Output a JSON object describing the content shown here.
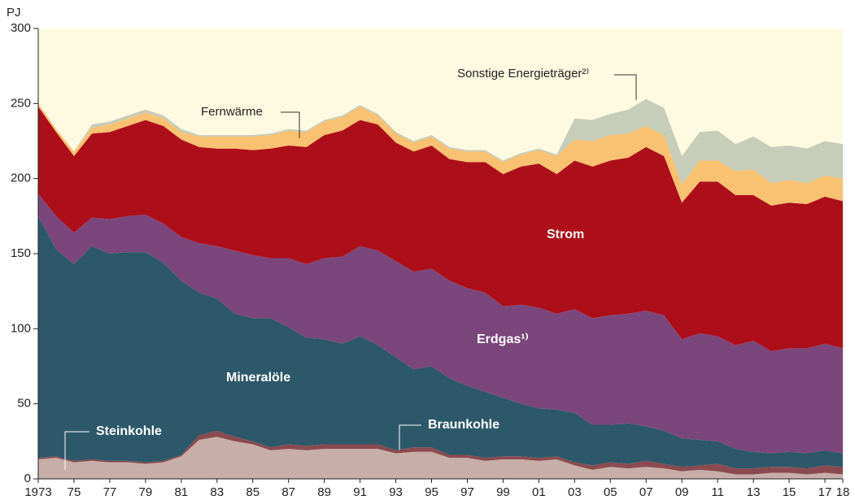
{
  "chart_data": {
    "type": "stacked-area",
    "y_label": "PJ",
    "x": [
      1973,
      1974,
      1975,
      1976,
      1977,
      1978,
      1979,
      1980,
      1981,
      1982,
      1983,
      1984,
      1985,
      1986,
      1987,
      1988,
      1989,
      1990,
      1991,
      1992,
      1993,
      1994,
      1995,
      1996,
      1997,
      1998,
      1999,
      2000,
      2001,
      2002,
      2003,
      2004,
      2005,
      2006,
      2007,
      2008,
      2009,
      2010,
      2011,
      2012,
      2013,
      2014,
      2015,
      2016,
      2017,
      2018
    ],
    "xlim": [
      1973,
      2018
    ],
    "xticks": [
      {
        "value": 1973,
        "label": "1973"
      },
      {
        "value": 1975,
        "label": "75"
      },
      {
        "value": 1977,
        "label": "77"
      },
      {
        "value": 1979,
        "label": "79"
      },
      {
        "value": 1981,
        "label": "81"
      },
      {
        "value": 1983,
        "label": "83"
      },
      {
        "value": 1985,
        "label": "85"
      },
      {
        "value": 1987,
        "label": "87"
      },
      {
        "value": 1989,
        "label": "89"
      },
      {
        "value": 1991,
        "label": "91"
      },
      {
        "value": 1993,
        "label": "93"
      },
      {
        "value": 1995,
        "label": "95"
      },
      {
        "value": 1997,
        "label": "97"
      },
      {
        "value": 1999,
        "label": "99"
      },
      {
        "value": 2001,
        "label": "01"
      },
      {
        "value": 2003,
        "label": "03"
      },
      {
        "value": 2005,
        "label": "05"
      },
      {
        "value": 2007,
        "label": "07"
      },
      {
        "value": 2009,
        "label": "09"
      },
      {
        "value": 2011,
        "label": "11"
      },
      {
        "value": 2013,
        "label": "13"
      },
      {
        "value": 2015,
        "label": "15"
      },
      {
        "value": 2017,
        "label": "17"
      },
      {
        "value": 2018,
        "label": "18"
      }
    ],
    "ylim": [
      0,
      300
    ],
    "yticks": [
      0,
      50,
      100,
      150,
      200,
      250,
      300
    ],
    "series": [
      {
        "name": "Steinkohle",
        "color": "#c8aea8",
        "values": [
          13,
          14,
          11,
          12,
          11,
          11,
          10,
          11,
          15,
          26,
          28,
          25,
          23,
          19,
          20,
          19,
          20,
          20,
          20,
          20,
          17,
          18,
          18,
          14,
          14,
          12,
          13,
          13,
          12,
          13,
          9,
          6,
          8,
          7,
          8,
          7,
          5,
          6,
          5,
          3,
          3,
          4,
          4,
          3,
          4,
          3
        ]
      },
      {
        "name": "Braunkohle",
        "color": "#8a4a50",
        "values": [
          1,
          1,
          1,
          1,
          1,
          1,
          1,
          1,
          1,
          3,
          4,
          3,
          2,
          2,
          3,
          3,
          3,
          3,
          3,
          3,
          2,
          3,
          3,
          2,
          2,
          2,
          2,
          2,
          2,
          2,
          2,
          3,
          3,
          3,
          4,
          3,
          3,
          3,
          5,
          4,
          4,
          4,
          4,
          4,
          5,
          5
        ]
      },
      {
        "name": "Mineralöle",
        "color": "#2d5869",
        "values": [
          161,
          138,
          131,
          142,
          138,
          139,
          140,
          132,
          116,
          95,
          88,
          82,
          82,
          86,
          78,
          72,
          70,
          67,
          72,
          66,
          62,
          52,
          54,
          51,
          46,
          44,
          39,
          35,
          33,
          31,
          33,
          27,
          25,
          27,
          23,
          22,
          19,
          17,
          15,
          13,
          11,
          9,
          10,
          10,
          10,
          9
        ]
      },
      {
        "name": "Erdgas¹⁾",
        "color": "#7b467c",
        "values": [
          15,
          22,
          21,
          19,
          23,
          24,
          25,
          26,
          29,
          33,
          35,
          42,
          42,
          40,
          46,
          49,
          54,
          58,
          60,
          63,
          64,
          65,
          65,
          65,
          65,
          66,
          61,
          66,
          67,
          64,
          69,
          71,
          73,
          73,
          77,
          77,
          66,
          71,
          70,
          69,
          74,
          68,
          69,
          70,
          71,
          70
        ]
      },
      {
        "name": "Strom",
        "color": "#ad0f1a",
        "values": [
          58,
          56,
          51,
          56,
          58,
          60,
          63,
          65,
          65,
          64,
          65,
          68,
          70,
          73,
          75,
          78,
          82,
          84,
          84,
          84,
          79,
          80,
          82,
          81,
          84,
          87,
          88,
          92,
          96,
          93,
          99,
          101,
          103,
          104,
          109,
          106,
          91,
          101,
          103,
          100,
          97,
          97,
          97,
          96,
          98,
          98
        ]
      },
      {
        "name": "Fernwärme",
        "color": "#f9c172",
        "values": [
          2,
          2,
          3,
          4,
          5,
          5,
          5,
          5,
          5,
          7,
          8,
          8,
          9,
          9,
          10,
          10,
          9,
          9,
          9,
          6,
          6,
          6,
          6,
          7,
          7,
          7,
          8,
          8,
          9,
          12,
          14,
          17,
          17,
          16,
          14,
          14,
          12,
          14,
          14,
          16,
          17,
          15,
          15,
          14,
          14,
          15
        ]
      },
      {
        "name": "Sonstige Energieträger²⁾",
        "color": "#c6cdb9",
        "values": [
          0,
          0,
          0,
          2,
          2,
          2,
          2,
          2,
          2,
          1,
          1,
          1,
          1,
          1,
          1,
          1,
          1,
          1,
          1,
          1,
          1,
          1,
          1,
          1,
          1,
          1,
          1,
          1,
          1,
          1,
          14,
          14,
          14,
          16,
          18,
          18,
          19,
          19,
          20,
          18,
          22,
          24,
          23,
          23,
          23,
          23
        ]
      }
    ]
  }
}
